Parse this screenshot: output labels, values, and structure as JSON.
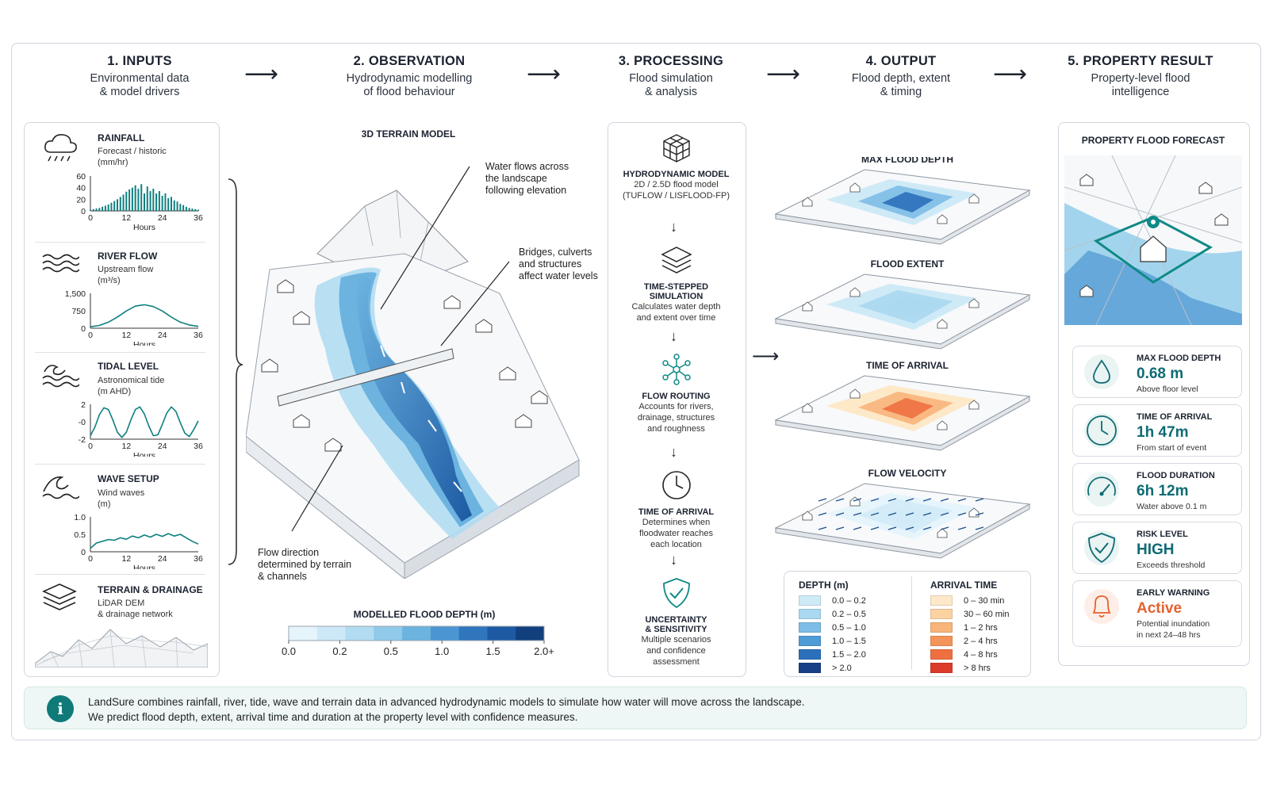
{
  "steps": [
    {
      "title": "1. INPUTS",
      "sub1": "Environmental data",
      "sub2": "& model drivers"
    },
    {
      "title": "2. OBSERVATION",
      "sub1": "Hydrodynamic modelling",
      "sub2": "of flood behaviour"
    },
    {
      "title": "3. PROCESSING",
      "sub1": "Flood simulation",
      "sub2": "& analysis"
    },
    {
      "title": "4. OUTPUT",
      "sub1": "Flood depth, extent",
      "sub2": "& timing"
    },
    {
      "title": "5. PROPERTY RESULT",
      "sub1": "Property-level flood",
      "sub2": "intelligence"
    }
  ],
  "inputs": {
    "rainfall": {
      "title": "RAINFALL",
      "sub1": "Forecast / historic",
      "sub2": "(mm/hr)",
      "yticks": [
        "60",
        "40",
        "20",
        "0"
      ],
      "xticks": [
        "0",
        "12",
        "24",
        "36"
      ],
      "xlabel": "Hours"
    },
    "river": {
      "title": "RIVER FLOW",
      "sub1": "Upstream flow",
      "sub2": "(m³/s)",
      "yticks": [
        "1,500",
        "750",
        "0"
      ],
      "xticks": [
        "0",
        "12",
        "24",
        "36"
      ],
      "xlabel": "Hours"
    },
    "tidal": {
      "title": "TIDAL LEVEL",
      "sub1": "Astronomical tide",
      "sub2": "(m AHD)",
      "yticks": [
        "2",
        "-0",
        "-2"
      ],
      "xticks": [
        "0",
        "12",
        "24",
        "36"
      ],
      "xlabel": "Hours"
    },
    "wave": {
      "title": "WAVE SETUP",
      "sub1": "Wind waves",
      "sub2": "(m)",
      "yticks": [
        "1.0",
        "0.5",
        "0"
      ],
      "xticks": [
        "0",
        "12",
        "24",
        "36"
      ],
      "xlabel": "Hours"
    },
    "terrain": {
      "title": "TERRAIN & DRAINAGE",
      "sub1": "LiDAR DEM",
      "sub2": "& drainage network"
    }
  },
  "observation": {
    "title": "3D TERRAIN MODEL",
    "note1": [
      "Water flows across",
      "the landscape",
      "following elevation"
    ],
    "note2": [
      "Bridges, culverts",
      "and structures",
      "affect water levels"
    ],
    "note3": [
      "Flow direction",
      "determined by terrain",
      "& channels"
    ],
    "scale_title": "MODELLED FLOOD DEPTH (m)",
    "scale_ticks": [
      "0.0",
      "0.2",
      "0.5",
      "1.0",
      "1.5",
      "2.0+"
    ],
    "scale_colors": [
      "#e6f4fb",
      "#cde9f7",
      "#b1dcf2",
      "#8fcaeb",
      "#6cb3e0",
      "#4b96d2",
      "#2f76bd",
      "#1d5aa3",
      "#123f7d"
    ]
  },
  "processing": [
    {
      "title": "HYDRODYNAMIC MODEL",
      "lines": [
        "2D / 2.5D flood model",
        "(TUFLOW / LISFLOOD-FP)"
      ],
      "icon": "cube-grid-icon"
    },
    {
      "title": "TIME-STEPPED",
      "title2": "SIMULATION",
      "lines": [
        "Calculates water depth",
        "and extent over time"
      ],
      "icon": "layers-icon"
    },
    {
      "title": "FLOW ROUTING",
      "lines": [
        "Accounts for rivers,",
        "drainage, structures",
        "and roughness"
      ],
      "icon": "network-icon"
    },
    {
      "title": "TIME OF ARRIVAL",
      "lines": [
        "Determines when",
        "floodwater reaches",
        "each location"
      ],
      "icon": "clock-icon"
    },
    {
      "title": "UNCERTAINTY",
      "title2": "& SENSITIVITY",
      "lines": [
        "Multiple scenarios",
        "and confidence",
        "assessment"
      ],
      "icon": "shield-check-icon"
    }
  ],
  "output": {
    "maps": [
      "MAX FLOOD DEPTH",
      "FLOOD EXTENT",
      "TIME OF ARRIVAL",
      "FLOW VELOCITY"
    ],
    "depth_title": "DEPTH (m)",
    "depth": [
      {
        "label": "0.0 – 0.2",
        "color": "#cfeaf7"
      },
      {
        "label": "0.2 – 0.5",
        "color": "#a9d8f0"
      },
      {
        "label": "0.5 – 1.0",
        "color": "#7dbde6"
      },
      {
        "label": "1.0 – 1.5",
        "color": "#4f9bd6"
      },
      {
        "label": "1.5 – 2.0",
        "color": "#2c70bb"
      },
      {
        "label": "> 2.0",
        "color": "#163f86"
      }
    ],
    "arrival_title": "ARRIVAL TIME",
    "arrival": [
      {
        "label": "0 – 30 min",
        "color": "#fde9c8"
      },
      {
        "label": "30 – 60 min",
        "color": "#fbd3a2"
      },
      {
        "label": "1 – 2 hrs",
        "color": "#f8b47a"
      },
      {
        "label": "2 – 4 hrs",
        "color": "#f49458"
      },
      {
        "label": "4 – 8 hrs",
        "color": "#ee7040"
      },
      {
        "label": "> 8 hrs",
        "color": "#db3b2a"
      }
    ]
  },
  "property": {
    "title": "PROPERTY FLOOD FORECAST",
    "cards": [
      {
        "label": "MAX FLOOD DEPTH",
        "value": "0.68 m",
        "sub": "Above floor level",
        "icon": "water-drop-icon",
        "color": "#0f6b73"
      },
      {
        "label": "TIME OF ARRIVAL",
        "value": "1h 47m",
        "sub": "From start of event",
        "icon": "clock-icon",
        "color": "#0f6b73"
      },
      {
        "label": "FLOOD DURATION",
        "value": "6h 12m",
        "sub": "Water above 0.1 m",
        "icon": "gauge-icon",
        "color": "#0f6b73"
      },
      {
        "label": "RISK LEVEL",
        "value": "HIGH",
        "sub": "Exceeds threshold",
        "icon": "shield-check-icon",
        "color": "#0f6b73"
      },
      {
        "label": "EARLY WARNING",
        "value": "Active",
        "sub": "Potential inundation",
        "sub2": "in next 24–48 hrs",
        "icon": "bell-icon",
        "color": "#e4612e"
      }
    ]
  },
  "info": {
    "line1": "LandSure combines rainfall, river, tide, wave and terrain data in advanced hydrodynamic models to simulate how water will move across the landscape.",
    "line2": "We predict flood depth, extent, arrival time and duration at the property level with confidence measures."
  },
  "chart_data": [
    {
      "type": "bar",
      "title": "RAINFALL",
      "xlabel": "Hours",
      "ylabel": "(mm/hr)",
      "xlim": [
        0,
        36
      ],
      "ylim": [
        0,
        60
      ],
      "x": [
        0,
        1,
        2,
        3,
        4,
        5,
        6,
        7,
        8,
        9,
        10,
        11,
        12,
        13,
        14,
        15,
        16,
        17,
        18,
        19,
        20,
        21,
        22,
        23,
        24,
        25,
        26,
        27,
        28,
        29,
        30,
        31,
        32,
        33,
        34,
        35,
        36
      ],
      "values": [
        2,
        3,
        4,
        5,
        7,
        9,
        11,
        14,
        17,
        20,
        24,
        28,
        33,
        37,
        40,
        44,
        38,
        46,
        30,
        42,
        34,
        38,
        30,
        34,
        26,
        30,
        22,
        24,
        18,
        16,
        12,
        10,
        7,
        5,
        4,
        3,
        2
      ]
    },
    {
      "type": "line",
      "title": "RIVER FLOW",
      "xlabel": "Hours",
      "ylabel": "(m³/s)",
      "xlim": [
        0,
        36
      ],
      "ylim": [
        0,
        1500
      ],
      "x": [
        0,
        3,
        6,
        9,
        12,
        15,
        18,
        21,
        24,
        27,
        30,
        33,
        36
      ],
      "values": [
        60,
        120,
        260,
        480,
        740,
        950,
        1010,
        930,
        740,
        480,
        260,
        140,
        80
      ]
    },
    {
      "type": "line",
      "title": "TIDAL LEVEL",
      "xlabel": "Hours",
      "ylabel": "(m AHD)",
      "xlim": [
        0,
        36
      ],
      "ylim": [
        -2,
        2
      ],
      "x": [
        0,
        1.5,
        3,
        4.5,
        6,
        7.5,
        9,
        10.5,
        12,
        13.5,
        15,
        16.5,
        18,
        19.5,
        21,
        22.5,
        24,
        25.5,
        27,
        28.5,
        30,
        31.5,
        33,
        34.5,
        36
      ],
      "values": [
        -1.6,
        -0.6,
        0.8,
        1.6,
        1.4,
        0.2,
        -1.2,
        -1.8,
        -1.2,
        0.2,
        1.4,
        1.7,
        0.9,
        -0.5,
        -1.6,
        -1.5,
        -0.3,
        1.0,
        1.7,
        1.2,
        -0.1,
        -1.3,
        -1.7,
        -0.9,
        0.1
      ]
    },
    {
      "type": "line",
      "title": "WAVE SETUP",
      "xlabel": "Hours",
      "ylabel": "(m)",
      "xlim": [
        0,
        36
      ],
      "ylim": [
        0,
        1.0
      ],
      "x": [
        0,
        2,
        4,
        6,
        8,
        10,
        12,
        14,
        16,
        18,
        20,
        22,
        24,
        26,
        28,
        30,
        32,
        34,
        36
      ],
      "values": [
        0.1,
        0.25,
        0.3,
        0.35,
        0.33,
        0.4,
        0.36,
        0.45,
        0.4,
        0.48,
        0.42,
        0.5,
        0.44,
        0.52,
        0.45,
        0.5,
        0.4,
        0.3,
        0.22
      ]
    }
  ]
}
